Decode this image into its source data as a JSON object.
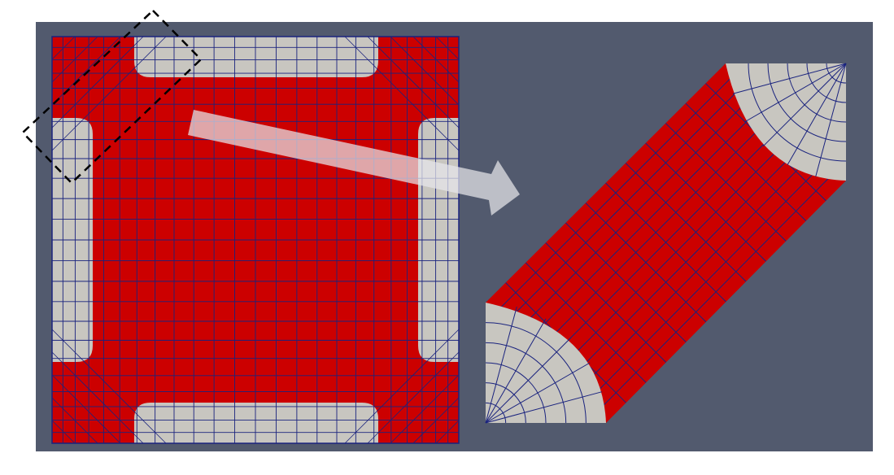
{
  "figure": {
    "description_free": true,
    "colors": {
      "page_background": "#ffffff",
      "viewport_background": "#525a6e",
      "region_fill": "#cc0000",
      "fillet_fill": "#c8c6c0",
      "mesh_line": "#1a237e",
      "marker_outline": "#000000",
      "arrow_fill": "#e6e6ea"
    },
    "left_view": {
      "grid_columns": 24,
      "grid_rows": 24
    },
    "right_view": {
      "sweep_divisions": 12,
      "cross_section_divisions": 6
    },
    "annotations": {
      "marker_style": "dashed-rectangle",
      "arrow_style": "translucent-block-arrow"
    }
  }
}
